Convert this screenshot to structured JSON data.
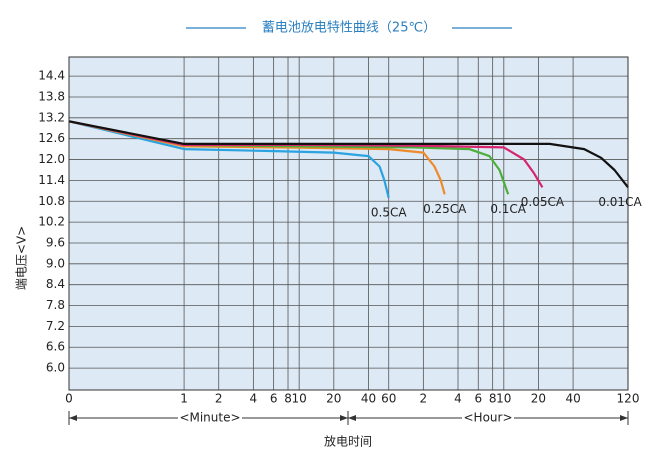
{
  "chart_data": {
    "type": "line",
    "title": "蓄电池放电特性曲线（25℃）",
    "ylabel": "端电压<V>",
    "xlabel": "放电时间",
    "annotations": [
      "<Minute>",
      "<Hour>"
    ],
    "xscale": "symlog",
    "xlim": [
      0,
      7200
    ],
    "xticks": [
      0,
      1,
      2,
      4,
      6,
      8,
      10,
      20,
      40,
      60,
      {
        "value": 120,
        "label": "2"
      },
      {
        "value": 240,
        "label": "4"
      },
      {
        "value": 360,
        "label": "6"
      },
      {
        "value": 480,
        "label": "8"
      },
      {
        "value": 600,
        "label": "10"
      },
      {
        "value": 1200,
        "label": "20"
      },
      {
        "value": 2400,
        "label": "40"
      },
      {
        "value": 7200,
        "label": "120"
      }
    ],
    "ylim": [
      5.37,
      14.95
    ],
    "yticks": [
      {
        "value": 6.0,
        "label": "6.0"
      },
      6.6,
      7.2,
      7.8,
      8.4,
      {
        "value": 9.0,
        "label": "9.0"
      },
      9.6,
      10.2,
      10.8,
      11.4,
      {
        "value": 12.0,
        "label": "12.0"
      },
      12.6,
      13.2,
      13.8,
      14.4
    ],
    "grid": true,
    "series": [
      {
        "name": "0.5CA",
        "color": "#2aa3e0",
        "x": [
          0,
          1,
          5,
          20,
          40,
          50,
          55,
          60
        ],
        "values": [
          13.1,
          12.3,
          12.25,
          12.2,
          12.1,
          11.8,
          11.4,
          10.9
        ]
      },
      {
        "name": "0.25CA",
        "color": "#ee8a2a",
        "x": [
          0,
          1,
          10,
          60,
          120,
          150,
          170,
          184
        ],
        "values": [
          13.1,
          12.38,
          12.34,
          12.3,
          12.2,
          11.8,
          11.4,
          11.0
        ]
      },
      {
        "name": "0.1CA",
        "color": "#4caf3a",
        "x": [
          0,
          1,
          10,
          100,
          300,
          450,
          550,
          655
        ],
        "values": [
          13.1,
          12.42,
          12.38,
          12.35,
          12.3,
          12.1,
          11.7,
          11.0
        ]
      },
      {
        "name": "0.05CA",
        "color": "#d6246e",
        "x": [
          0,
          1,
          10,
          100,
          600,
          900,
          1100,
          1300
        ],
        "values": [
          13.1,
          12.42,
          12.42,
          12.4,
          12.35,
          12.0,
          11.6,
          11.2
        ]
      },
      {
        "name": "0.01CA",
        "color": "#111111",
        "x": [
          0,
          1,
          100,
          1500,
          3000,
          4200,
          5500,
          7200
        ],
        "values": [
          13.1,
          12.45,
          12.45,
          12.45,
          12.3,
          12.05,
          11.7,
          11.2
        ]
      }
    ]
  }
}
